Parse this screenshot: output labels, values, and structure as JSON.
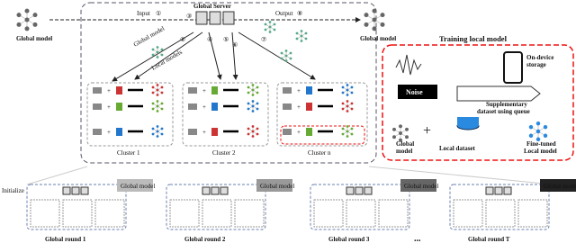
{
  "top": {
    "left_model": "Global model",
    "right_model": "Global model",
    "server": "Global Server",
    "input": "Input",
    "output": "Output",
    "steps": [
      "①",
      "②",
      "③",
      "④",
      "⑤",
      "⑥",
      "⑦",
      "⑧"
    ],
    "down_label": "Global model",
    "up_label": "Local models",
    "clusters": [
      "Cluster 1",
      "Cluster 2",
      "Cluster n"
    ]
  },
  "training": {
    "title": "Training local model",
    "noise": "Noise",
    "storage": [
      "On-device",
      "storage"
    ],
    "queue": [
      "Supplementary",
      "dataset using queue"
    ],
    "global_model": [
      "Global",
      "model"
    ],
    "local_dataset": "Local dataset",
    "fine_tuned": [
      "Fine-tuned",
      "Local model"
    ]
  },
  "bottom": {
    "initialize": "Initialize",
    "model_tags": [
      "Global model",
      "Global model",
      "Global model",
      "Global model"
    ],
    "rounds": [
      "Global round 1",
      "Global round 2",
      "Global round 3",
      "Global round T"
    ],
    "ellipsis": "..."
  }
}
